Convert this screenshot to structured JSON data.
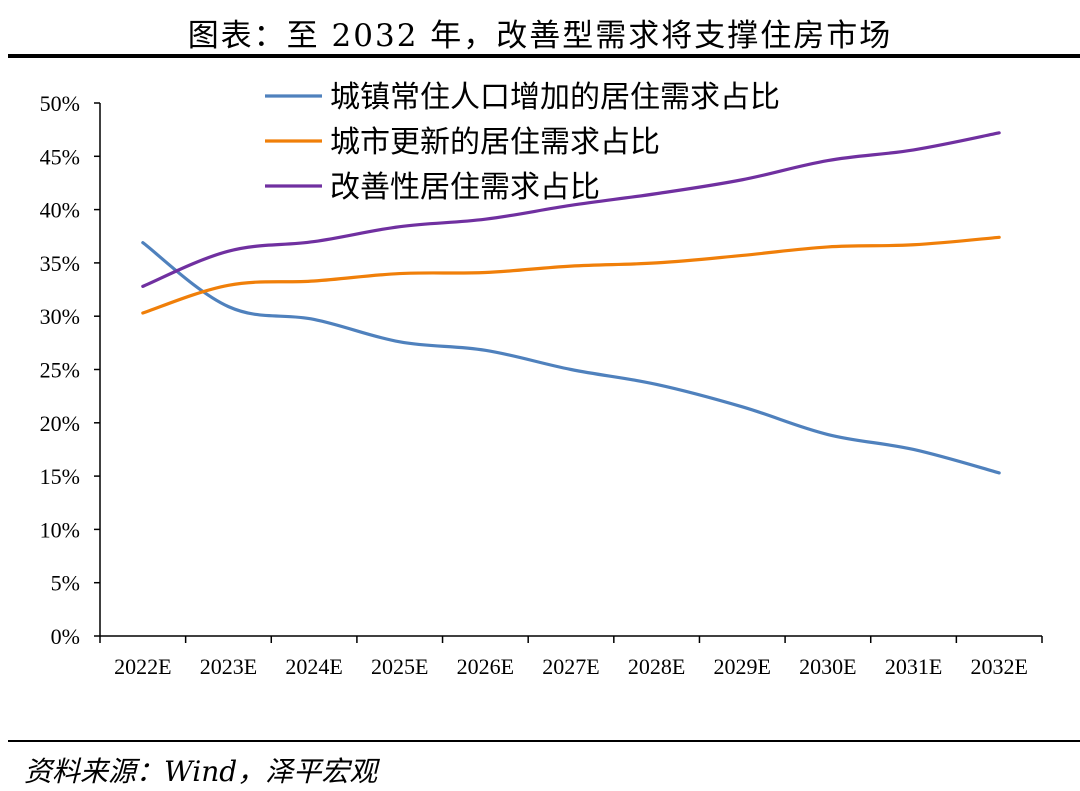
{
  "title": "图表：至 2032 年，改善型需求将支撑住房市场",
  "source": "资料来源：Wind，泽平宏观",
  "chart_data": {
    "type": "line",
    "categories": [
      "2022E",
      "2023E",
      "2024E",
      "2025E",
      "2026E",
      "2027E",
      "2028E",
      "2029E",
      "2030E",
      "2031E",
      "2032E"
    ],
    "y_ticks": [
      "0%",
      "5%",
      "10%",
      "15%",
      "20%",
      "25%",
      "30%",
      "35%",
      "40%",
      "45%",
      "50%"
    ],
    "ylim": [
      0,
      50
    ],
    "y_unit": "%",
    "legend_position": "top",
    "series": [
      {
        "name": "城镇常住人口增加的居住需求占比",
        "color": "#4F81BD",
        "values": [
          36.9,
          30.9,
          29.7,
          27.6,
          26.8,
          25.0,
          23.6,
          21.5,
          18.9,
          17.5,
          15.3
        ]
      },
      {
        "name": "城市更新的居住需求占比",
        "color": "#F07F09",
        "values": [
          30.3,
          32.9,
          33.3,
          34.0,
          34.1,
          34.7,
          35.0,
          35.7,
          36.5,
          36.7,
          37.4
        ]
      },
      {
        "name": "改善性居住需求占比",
        "color": "#7030A0",
        "values": [
          32.8,
          36.1,
          37.0,
          38.4,
          39.1,
          40.4,
          41.5,
          42.8,
          44.6,
          45.6,
          47.2
        ]
      }
    ]
  }
}
